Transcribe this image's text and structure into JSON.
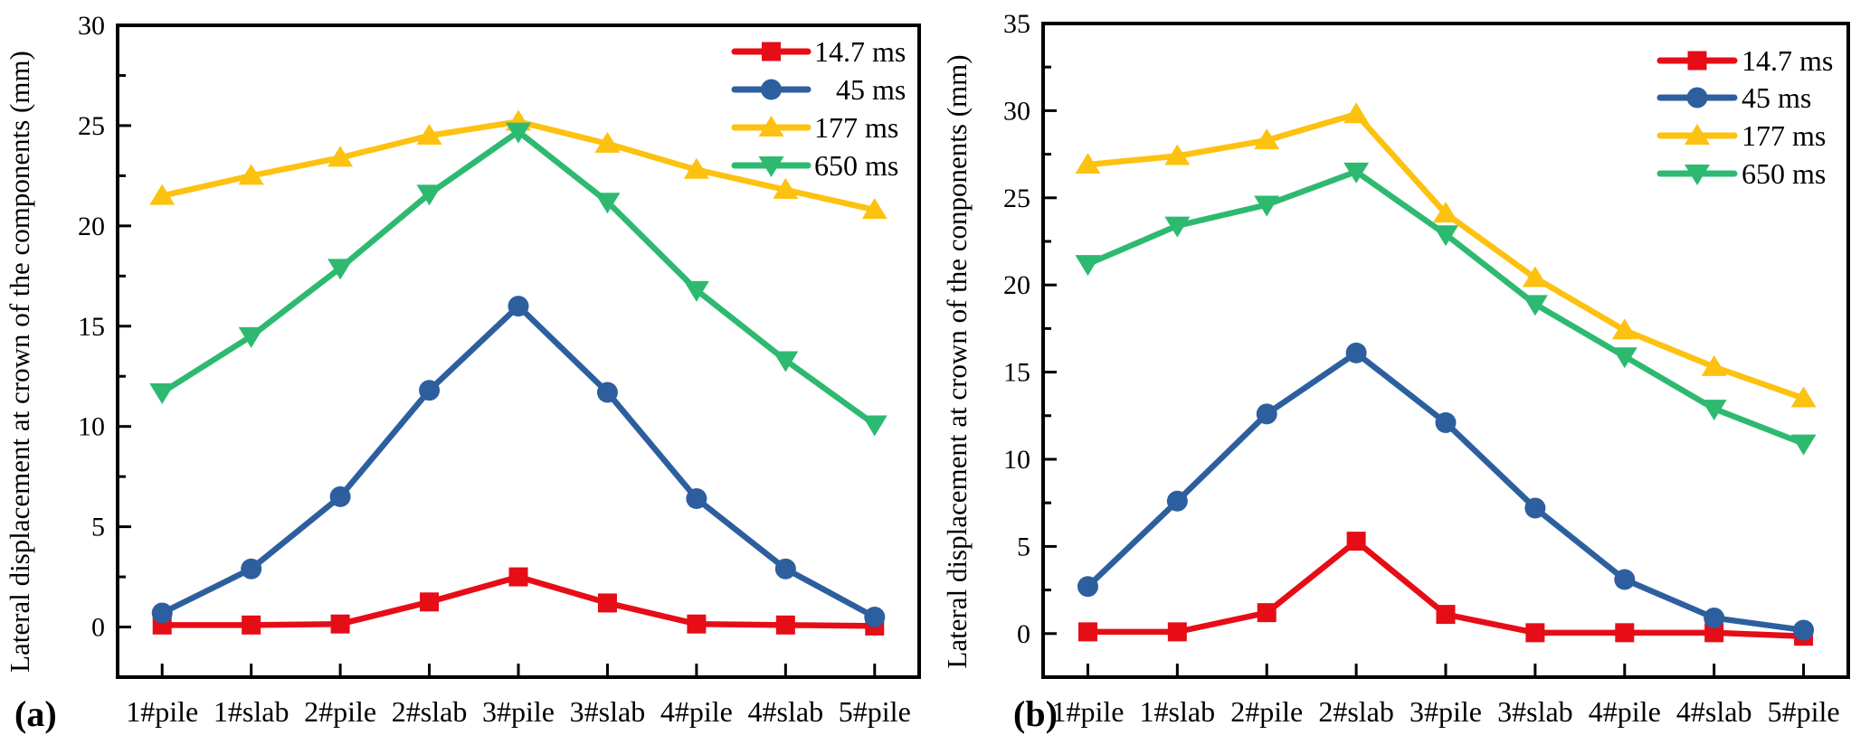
{
  "figure": {
    "background": "#ffffff"
  },
  "chart_data": [
    {
      "panel_label": "(a)",
      "type": "line",
      "title": "",
      "xlabel": "",
      "ylabel": "Lateral displacement at crown of the components (mm)",
      "categories": [
        "1#pile",
        "1#slab",
        "2#pile",
        "2#slab",
        "3#pile",
        "3#slab",
        "4#pile",
        "4#slab",
        "5#pile"
      ],
      "ylim": [
        -2.5,
        30
      ],
      "yticks": [
        0,
        5,
        10,
        15,
        20,
        25,
        30
      ],
      "minor_tick_step": 2.5,
      "grid": false,
      "legend_position": "top-right",
      "series": [
        {
          "name": "14.7 ms",
          "legend_label": "14.7 ms",
          "marker": "square",
          "color": "#e60d17",
          "values": [
            0.1,
            0.1,
            0.15,
            1.25,
            2.5,
            1.2,
            0.15,
            0.1,
            0.05
          ]
        },
        {
          "name": "45 ms",
          "legend_label": "   45 ms",
          "marker": "circle",
          "color": "#2d5f9e",
          "values": [
            0.7,
            2.9,
            6.5,
            11.8,
            16.0,
            11.7,
            6.4,
            2.9,
            0.5
          ]
        },
        {
          "name": "177 ms",
          "legend_label": "177 ms",
          "marker": "triangle-up",
          "color": "#fdc110",
          "values": [
            21.5,
            22.5,
            23.4,
            24.5,
            25.2,
            24.1,
            22.8,
            21.8,
            20.8
          ]
        },
        {
          "name": "650 ms",
          "legend_label": "650 ms",
          "marker": "triangle-down",
          "color": "#2eb971",
          "values": [
            11.7,
            14.5,
            17.9,
            21.6,
            24.7,
            21.2,
            16.8,
            13.3,
            10.1
          ]
        }
      ]
    },
    {
      "panel_label": "(b)",
      "type": "line",
      "title": "",
      "xlabel": "",
      "ylabel": "Lateral displacement at crown of the conponents (mm)",
      "categories": [
        "1#pile",
        "1#slab",
        "2#pile",
        "2#slab",
        "3#pile",
        "3#slab",
        "4#pile",
        "4#slab",
        "5#pile"
      ],
      "ylim": [
        -2.5,
        35
      ],
      "yticks": [
        0,
        5,
        10,
        15,
        20,
        25,
        30,
        35
      ],
      "minor_tick_step": 2.5,
      "grid": false,
      "legend_position": "top-right",
      "series": [
        {
          "name": "14.7 ms",
          "legend_label": "14.7 ms",
          "marker": "square",
          "color": "#e60d17",
          "values": [
            0.1,
            0.1,
            1.2,
            5.3,
            1.1,
            0.05,
            0.05,
            0.05,
            -0.15
          ]
        },
        {
          "name": "45 ms",
          "legend_label": "45 ms",
          "marker": "circle",
          "color": "#2d5f9e",
          "values": [
            2.7,
            7.6,
            12.6,
            16.1,
            12.1,
            7.2,
            3.1,
            0.9,
            0.2
          ]
        },
        {
          "name": "177 ms",
          "legend_label": "177 ms",
          "marker": "triangle-up",
          "color": "#fdc110",
          "values": [
            26.9,
            27.4,
            28.3,
            29.8,
            24.1,
            20.4,
            17.4,
            15.3,
            13.5
          ]
        },
        {
          "name": "650 ms",
          "legend_label": "650 ms",
          "marker": "triangle-down",
          "color": "#2eb971",
          "values": [
            21.2,
            23.4,
            24.6,
            26.5,
            22.9,
            18.9,
            15.9,
            12.9,
            10.9
          ]
        }
      ]
    }
  ]
}
